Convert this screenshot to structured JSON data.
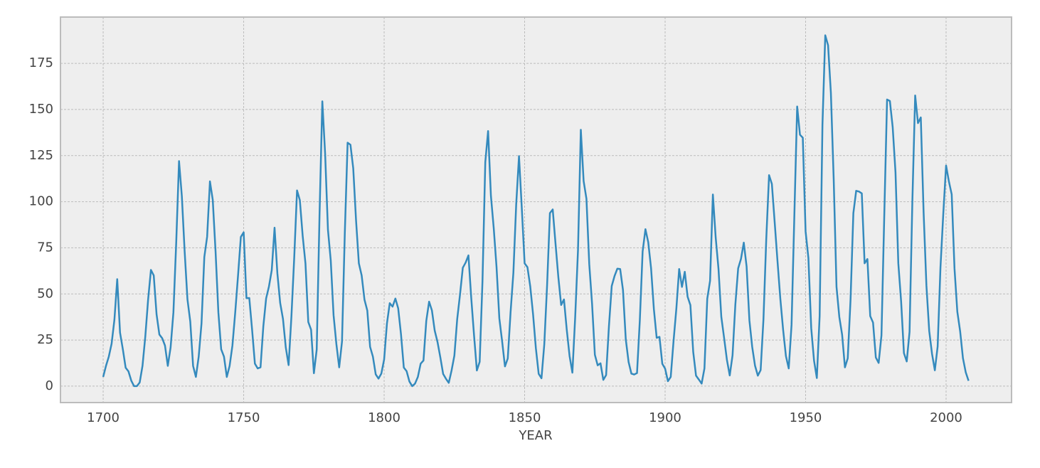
{
  "chart_data": {
    "type": "line",
    "xlabel": "YEAR",
    "x": [
      1700,
      1701,
      1702,
      1703,
      1704,
      1705,
      1706,
      1707,
      1708,
      1709,
      1710,
      1711,
      1712,
      1713,
      1714,
      1715,
      1716,
      1717,
      1718,
      1719,
      1720,
      1721,
      1722,
      1723,
      1724,
      1725,
      1726,
      1727,
      1728,
      1729,
      1730,
      1731,
      1732,
      1733,
      1734,
      1735,
      1736,
      1737,
      1738,
      1739,
      1740,
      1741,
      1742,
      1743,
      1744,
      1745,
      1746,
      1747,
      1748,
      1749,
      1750,
      1751,
      1752,
      1753,
      1754,
      1755,
      1756,
      1757,
      1758,
      1759,
      1760,
      1761,
      1762,
      1763,
      1764,
      1765,
      1766,
      1767,
      1768,
      1769,
      1770,
      1771,
      1772,
      1773,
      1774,
      1775,
      1776,
      1777,
      1778,
      1779,
      1780,
      1781,
      1782,
      1783,
      1784,
      1785,
      1786,
      1787,
      1788,
      1789,
      1790,
      1791,
      1792,
      1793,
      1794,
      1795,
      1796,
      1797,
      1798,
      1799,
      1800,
      1801,
      1802,
      1803,
      1804,
      1805,
      1806,
      1807,
      1808,
      1809,
      1810,
      1811,
      1812,
      1813,
      1814,
      1815,
      1816,
      1817,
      1818,
      1819,
      1820,
      1821,
      1822,
      1823,
      1824,
      1825,
      1826,
      1827,
      1828,
      1829,
      1830,
      1831,
      1832,
      1833,
      1834,
      1835,
      1836,
      1837,
      1838,
      1839,
      1840,
      1841,
      1842,
      1843,
      1844,
      1845,
      1846,
      1847,
      1848,
      1849,
      1850,
      1851,
      1852,
      1853,
      1854,
      1855,
      1856,
      1857,
      1858,
      1859,
      1860,
      1861,
      1862,
      1863,
      1864,
      1865,
      1866,
      1867,
      1868,
      1869,
      1870,
      1871,
      1872,
      1873,
      1874,
      1875,
      1876,
      1877,
      1878,
      1879,
      1880,
      1881,
      1882,
      1883,
      1884,
      1885,
      1886,
      1887,
      1888,
      1889,
      1890,
      1891,
      1892,
      1893,
      1894,
      1895,
      1896,
      1897,
      1898,
      1899,
      1900,
      1901,
      1902,
      1903,
      1904,
      1905,
      1906,
      1907,
      1908,
      1909,
      1910,
      1911,
      1912,
      1913,
      1914,
      1915,
      1916,
      1917,
      1918,
      1919,
      1920,
      1921,
      1922,
      1923,
      1924,
      1925,
      1926,
      1927,
      1928,
      1929,
      1930,
      1931,
      1932,
      1933,
      1934,
      1935,
      1936,
      1937,
      1938,
      1939,
      1940,
      1941,
      1942,
      1943,
      1944,
      1945,
      1946,
      1947,
      1948,
      1949,
      1950,
      1951,
      1952,
      1953,
      1954,
      1955,
      1956,
      1957,
      1958,
      1959,
      1960,
      1961,
      1962,
      1963,
      1964,
      1965,
      1966,
      1967,
      1968,
      1969,
      1970,
      1971,
      1972,
      1973,
      1974,
      1975,
      1976,
      1977,
      1978,
      1979,
      1980,
      1981,
      1982,
      1983,
      1984,
      1985,
      1986,
      1987,
      1988,
      1989,
      1990,
      1991,
      1992,
      1993,
      1994,
      1995,
      1996,
      1997,
      1998,
      1999,
      2000,
      2001,
      2002,
      2003,
      2004,
      2005,
      2006,
      2007,
      2008
    ],
    "series": [
      {
        "color": "#348abd",
        "values": [
          5.0,
          11.0,
          16.0,
          23.0,
          36.0,
          58.0,
          29.0,
          20.0,
          10.0,
          8.0,
          3.0,
          0.0,
          0.0,
          2.0,
          11.0,
          27.0,
          47.0,
          63.0,
          60.0,
          39.0,
          28.0,
          26.0,
          22.0,
          11.0,
          21.0,
          40.0,
          78.0,
          122.0,
          103.0,
          73.0,
          47.0,
          35.0,
          11.0,
          5.0,
          16.0,
          34.0,
          70.0,
          81.0,
          111.0,
          101.0,
          73.0,
          40.0,
          20.0,
          16.0,
          5.0,
          11.0,
          22.0,
          40.0,
          60.0,
          80.9,
          83.4,
          47.7,
          47.8,
          30.7,
          12.2,
          9.6,
          10.2,
          32.4,
          47.6,
          54.0,
          62.9,
          85.9,
          61.2,
          45.1,
          36.4,
          20.9,
          11.4,
          37.8,
          69.8,
          106.1,
          100.8,
          81.6,
          66.5,
          34.8,
          30.6,
          7.0,
          19.8,
          92.5,
          154.4,
          125.9,
          84.8,
          68.1,
          38.5,
          22.8,
          10.2,
          24.1,
          82.9,
          132.0,
          130.9,
          118.1,
          89.9,
          66.6,
          60.0,
          46.9,
          41.0,
          21.3,
          16.0,
          6.4,
          4.1,
          6.8,
          14.5,
          34.0,
          45.0,
          43.1,
          47.5,
          42.2,
          28.1,
          10.1,
          8.1,
          2.5,
          0.0,
          1.4,
          5.0,
          12.2,
          13.9,
          35.4,
          45.8,
          41.1,
          30.1,
          23.9,
          15.6,
          6.6,
          4.0,
          1.8,
          8.5,
          16.6,
          36.3,
          49.6,
          64.2,
          67.0,
          70.9,
          47.8,
          27.5,
          8.5,
          13.2,
          56.9,
          121.5,
          138.3,
          103.2,
          85.7,
          64.6,
          36.7,
          24.2,
          10.7,
          15.0,
          40.1,
          61.5,
          98.5,
          124.7,
          96.3,
          66.6,
          64.5,
          54.1,
          39.0,
          20.6,
          6.7,
          4.3,
          22.7,
          54.8,
          93.8,
          95.8,
          77.2,
          59.1,
          44.0,
          47.0,
          30.5,
          16.3,
          7.3,
          37.6,
          74.0,
          139.0,
          111.2,
          101.6,
          66.2,
          44.7,
          17.0,
          11.3,
          12.4,
          3.4,
          6.0,
          32.3,
          54.3,
          59.7,
          63.7,
          63.5,
          52.2,
          25.4,
          13.1,
          6.8,
          6.3,
          7.1,
          35.6,
          73.0,
          85.1,
          78.0,
          64.0,
          41.8,
          26.2,
          26.7,
          12.1,
          9.5,
          2.7,
          5.0,
          24.4,
          42.0,
          63.5,
          53.8,
          62.0,
          48.5,
          43.9,
          18.6,
          5.7,
          3.6,
          1.4,
          9.6,
          47.4,
          57.1,
          103.9,
          80.6,
          63.6,
          37.6,
          26.1,
          14.2,
          5.8,
          16.7,
          44.3,
          63.9,
          69.0,
          77.8,
          64.9,
          35.7,
          21.2,
          11.1,
          5.7,
          8.7,
          36.1,
          79.7,
          114.4,
          109.6,
          88.8,
          67.8,
          47.5,
          30.6,
          16.3,
          9.6,
          33.2,
          92.6,
          151.6,
          136.3,
          134.7,
          83.9,
          69.4,
          31.5,
          13.9,
          4.4,
          38.0,
          141.7,
          190.2,
          184.8,
          159.0,
          112.3,
          53.9,
          37.5,
          27.9,
          10.2,
          15.1,
          47.0,
          93.8,
          105.9,
          105.5,
          104.5,
          66.6,
          68.9,
          38.0,
          34.5,
          15.5,
          12.6,
          27.5,
          92.5,
          155.4,
          154.6,
          140.4,
          115.9,
          66.6,
          45.9,
          17.9,
          13.4,
          29.4,
          100.2,
          157.6,
          142.6,
          145.7,
          94.3,
          54.6,
          29.9,
          17.5,
          8.6,
          21.5,
          64.3,
          93.3,
          119.6,
          111.0,
          104.0,
          63.7,
          40.4,
          29.8,
          15.2,
          7.5,
          2.9
        ]
      }
    ],
    "xlim": [
      1684.8,
      2023.3
    ],
    "xticks": [
      1700,
      1750,
      1800,
      1850,
      1900,
      1950,
      2000
    ],
    "ylim": [
      -8.9,
      200.1
    ],
    "yticks": [
      0,
      25,
      50,
      75,
      100,
      125,
      150,
      175
    ],
    "grid": true
  }
}
